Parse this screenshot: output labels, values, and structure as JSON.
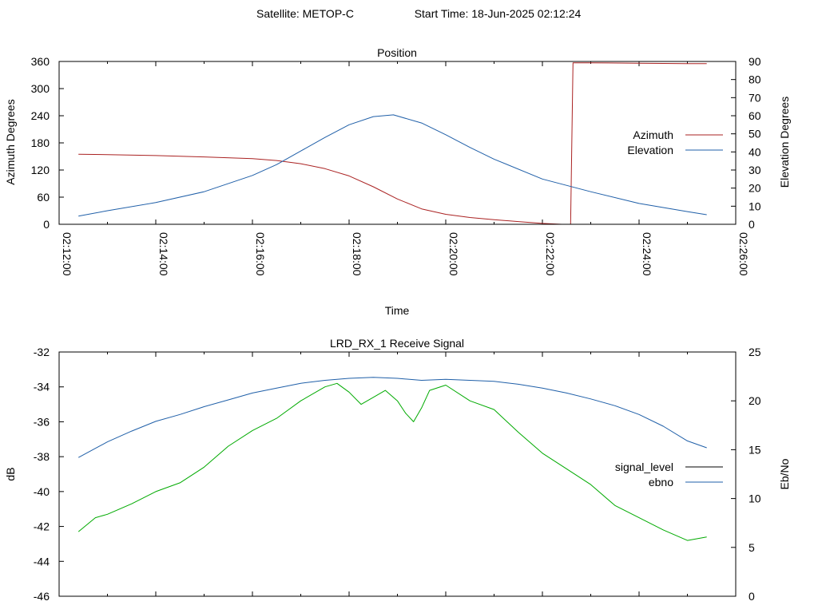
{
  "header": {
    "satellite": "Satellite: METOP-C",
    "start_time": "Start Time: 18-Jun-2025 02:12:24"
  },
  "chart_data": [
    {
      "type": "line",
      "title": "Position",
      "xlabel": "Time",
      "ylabel": "Azimuth Degrees",
      "y2label": "Elevation Degrees",
      "xlim": [
        "02:12:00",
        "02:26:00"
      ],
      "x_tick_labels": [
        "02:12:00",
        "02:14:00",
        "02:16:00",
        "02:18:00",
        "02:20:00",
        "02:22:00",
        "02:24:00",
        "02:26:00"
      ],
      "ylim": [
        0,
        360
      ],
      "y_ticks": [
        0,
        60,
        120,
        180,
        240,
        300,
        360
      ],
      "y2lim": [
        0,
        90
      ],
      "y2_ticks": [
        0,
        10,
        20,
        30,
        40,
        50,
        60,
        70,
        80,
        90
      ],
      "legend_position": "right",
      "series": [
        {
          "name": "Azimuth",
          "axis": "left",
          "color": "#aa2222",
          "x": [
            "02:12:24",
            "02:13:00",
            "02:14:00",
            "02:15:00",
            "02:16:00",
            "02:16:30",
            "02:17:00",
            "02:17:30",
            "02:18:00",
            "02:18:30",
            "02:19:00",
            "02:19:30",
            "02:20:00",
            "02:20:30",
            "02:21:00",
            "02:21:30",
            "02:22:00",
            "02:22:24",
            "02:22:35",
            "02:22:38",
            "02:23:00",
            "02:24:00",
            "02:25:00",
            "02:25:24"
          ],
          "values": [
            155,
            154,
            152,
            149,
            145,
            141,
            134,
            123,
            107,
            83,
            56,
            34,
            22,
            15,
            10,
            6,
            2,
            0,
            0,
            357,
            357,
            356,
            355,
            355
          ]
        },
        {
          "name": "Elevation",
          "axis": "right",
          "color": "#1f5fa8",
          "x": [
            "02:12:24",
            "02:13:00",
            "02:14:00",
            "02:15:00",
            "02:16:00",
            "02:16:30",
            "02:17:00",
            "02:17:30",
            "02:18:00",
            "02:18:30",
            "02:18:55",
            "02:19:30",
            "02:20:00",
            "02:20:30",
            "02:21:00",
            "02:22:00",
            "02:23:00",
            "02:24:00",
            "02:25:00",
            "02:25:24"
          ],
          "values": [
            4.5,
            7.5,
            12,
            18,
            27,
            33,
            40.5,
            48,
            55,
            59.5,
            60.5,
            56,
            49.5,
            42.5,
            36,
            25,
            18,
            11.5,
            7,
            5.3
          ]
        }
      ]
    },
    {
      "type": "line",
      "title": "LRD_RX_1 Receive Signal",
      "ylabel": "dB",
      "y2label": "Eb/No",
      "xlim": [
        "02:12:00",
        "02:26:00"
      ],
      "ylim": [
        -46,
        -32
      ],
      "y_ticks": [
        -46,
        -44,
        -42,
        -40,
        -38,
        -36,
        -34,
        -32
      ],
      "y2lim": [
        0,
        25
      ],
      "y2_ticks": [
        0,
        5,
        10,
        15,
        20,
        25
      ],
      "legend_position": "right",
      "series": [
        {
          "name": "signal_level",
          "axis": "left",
          "color": "#000000",
          "x": [],
          "values": []
        },
        {
          "name": "ebno",
          "axis": "right",
          "color": "#1f5fa8",
          "x": [
            "02:12:24",
            "02:13:00",
            "02:13:30",
            "02:14:00",
            "02:14:30",
            "02:15:00",
            "02:15:30",
            "02:16:00",
            "02:16:30",
            "02:17:00",
            "02:17:30",
            "02:18:00",
            "02:18:30",
            "02:19:00",
            "02:19:30",
            "02:20:00",
            "02:20:30",
            "02:21:00",
            "02:21:30",
            "02:22:00",
            "02:22:30",
            "02:23:00",
            "02:23:30",
            "02:24:00",
            "02:24:30",
            "02:25:00",
            "02:25:24"
          ],
          "values": [
            14.2,
            15.8,
            16.9,
            17.9,
            18.6,
            19.4,
            20.1,
            20.8,
            21.3,
            21.8,
            22.1,
            22.3,
            22.4,
            22.3,
            22.1,
            22.2,
            22.1,
            22.0,
            21.7,
            21.3,
            20.8,
            20.2,
            19.5,
            18.6,
            17.4,
            15.9,
            15.2
          ]
        },
        {
          "name": "",
          "axis": "left",
          "color": "#00aa00",
          "x": [
            "02:12:24",
            "02:12:45",
            "02:13:00",
            "02:13:30",
            "02:14:00",
            "02:14:30",
            "02:15:00",
            "02:15:30",
            "02:16:00",
            "02:16:30",
            "02:17:00",
            "02:17:30",
            "02:17:45",
            "02:18:00",
            "02:18:15",
            "02:18:30",
            "02:18:45",
            "02:19:00",
            "02:19:10",
            "02:19:20",
            "02:19:30",
            "02:19:40",
            "02:20:00",
            "02:20:30",
            "02:21:00",
            "02:21:30",
            "02:22:00",
            "02:22:30",
            "02:23:00",
            "02:23:30",
            "02:24:00",
            "02:24:30",
            "02:25:00",
            "02:25:24"
          ],
          "values": [
            -42.3,
            -41.5,
            -41.3,
            -40.7,
            -40.0,
            -39.5,
            -38.6,
            -37.4,
            -36.5,
            -35.8,
            -34.8,
            -34.0,
            -33.8,
            -34.3,
            -35.0,
            -34.6,
            -34.2,
            -34.8,
            -35.5,
            -36.0,
            -35.2,
            -34.2,
            -33.9,
            -34.8,
            -35.3,
            -36.6,
            -37.8,
            -38.7,
            -39.6,
            -40.8,
            -41.5,
            -42.2,
            -42.8,
            -42.6
          ]
        }
      ]
    }
  ]
}
